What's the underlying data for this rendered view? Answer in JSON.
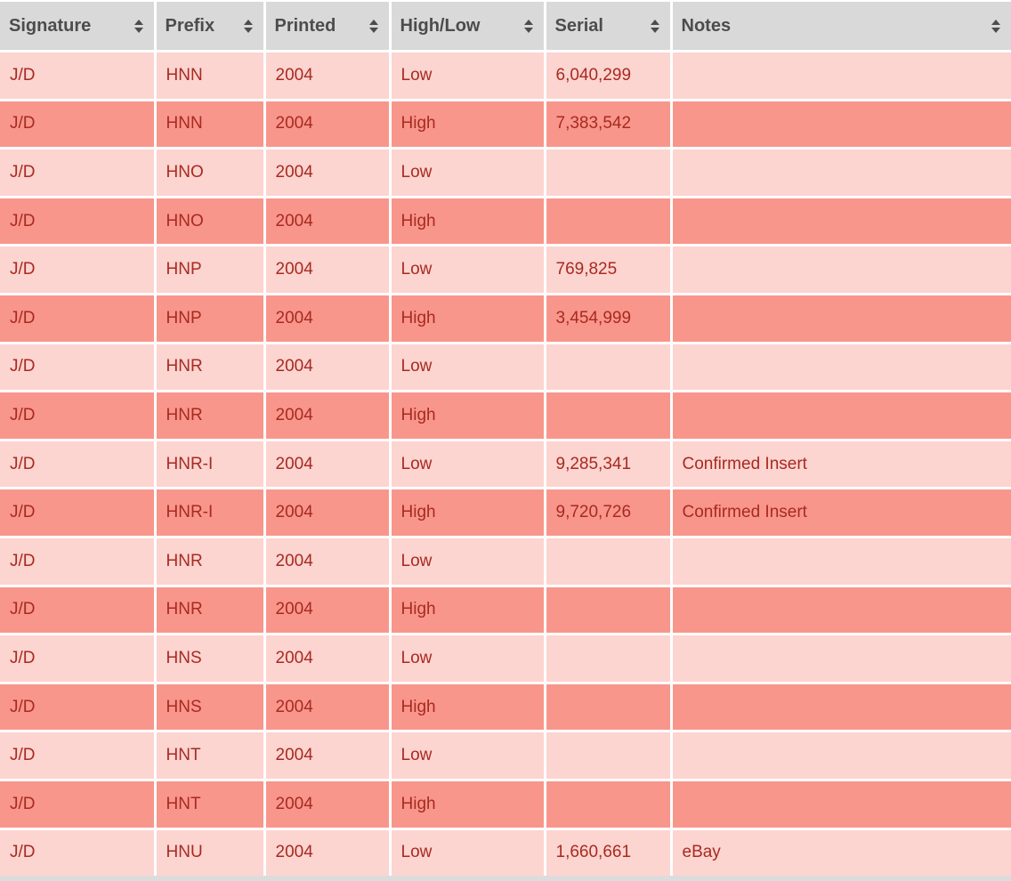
{
  "colors": {
    "header_bg": "#d9d9d9",
    "header_text": "#4c4c4c",
    "row_light_bg": "#fcd4d0",
    "row_dark_bg": "#f9968b",
    "cell_text": "#a82a21",
    "grid_border": "#ffffff",
    "bottom_strip": "#dcdcdc"
  },
  "table": {
    "columns": [
      {
        "id": "signature",
        "label": "Signature",
        "sort_icon": "sort-arrows"
      },
      {
        "id": "prefix",
        "label": "Prefix",
        "sort_icon": "sort-arrows"
      },
      {
        "id": "printed",
        "label": "Printed",
        "sort_icon": "sort-arrows"
      },
      {
        "id": "high_low",
        "label": "High/Low",
        "sort_icon": "sort-arrows"
      },
      {
        "id": "serial",
        "label": "Serial",
        "sort_icon": "sort-arrows"
      },
      {
        "id": "notes",
        "label": "Notes",
        "sort_icon": "sort-arrows"
      }
    ],
    "rows": [
      {
        "signature": "J/D",
        "prefix": "HNN",
        "printed": "2004",
        "high_low": "Low",
        "serial": "6,040,299",
        "notes": ""
      },
      {
        "signature": "J/D",
        "prefix": "HNN",
        "printed": "2004",
        "high_low": "High",
        "serial": "7,383,542",
        "notes": ""
      },
      {
        "signature": "J/D",
        "prefix": "HNO",
        "printed": "2004",
        "high_low": "Low",
        "serial": "",
        "notes": ""
      },
      {
        "signature": "J/D",
        "prefix": "HNO",
        "printed": "2004",
        "high_low": "High",
        "serial": "",
        "notes": ""
      },
      {
        "signature": "J/D",
        "prefix": "HNP",
        "printed": "2004",
        "high_low": "Low",
        "serial": "769,825",
        "notes": ""
      },
      {
        "signature": "J/D",
        "prefix": "HNP",
        "printed": "2004",
        "high_low": "High",
        "serial": "3,454,999",
        "notes": ""
      },
      {
        "signature": "J/D",
        "prefix": "HNR",
        "printed": "2004",
        "high_low": "Low",
        "serial": "",
        "notes": ""
      },
      {
        "signature": "J/D",
        "prefix": "HNR",
        "printed": "2004",
        "high_low": "High",
        "serial": "",
        "notes": ""
      },
      {
        "signature": "J/D",
        "prefix": "HNR-I",
        "printed": "2004",
        "high_low": "Low",
        "serial": "9,285,341",
        "notes": "Confirmed Insert"
      },
      {
        "signature": "J/D",
        "prefix": "HNR-I",
        "printed": "2004",
        "high_low": "High",
        "serial": "9,720,726",
        "notes": "Confirmed Insert"
      },
      {
        "signature": "J/D",
        "prefix": "HNR",
        "printed": "2004",
        "high_low": "Low",
        "serial": "",
        "notes": ""
      },
      {
        "signature": "J/D",
        "prefix": "HNR",
        "printed": "2004",
        "high_low": "High",
        "serial": "",
        "notes": ""
      },
      {
        "signature": "J/D",
        "prefix": "HNS",
        "printed": "2004",
        "high_low": "Low",
        "serial": "",
        "notes": ""
      },
      {
        "signature": "J/D",
        "prefix": "HNS",
        "printed": "2004",
        "high_low": "High",
        "serial": "",
        "notes": ""
      },
      {
        "signature": "J/D",
        "prefix": "HNT",
        "printed": "2004",
        "high_low": "Low",
        "serial": "",
        "notes": ""
      },
      {
        "signature": "J/D",
        "prefix": "HNT",
        "printed": "2004",
        "high_low": "High",
        "serial": "",
        "notes": ""
      },
      {
        "signature": "J/D",
        "prefix": "HNU",
        "printed": "2004",
        "high_low": "Low",
        "serial": "1,660,661",
        "notes": "eBay"
      }
    ]
  }
}
